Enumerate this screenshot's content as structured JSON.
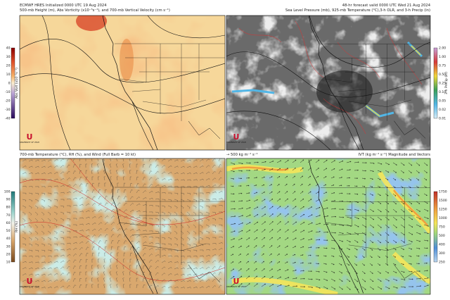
{
  "header": {
    "left_line1": "ECMWF HRES Initialized 0000 UTC 19 Aug 2024",
    "left_line2": "500-mb Height (m), Abs Vorticity (x10⁻⁵s⁻¹), and 700-mb Vertical Velocity (cm s⁻¹)",
    "right_line1": "48-hr forecast valid 0000 UTC Wed 21 Aug 2024",
    "right_line2": "Sea Level Pressure (mb), 925-mb Temperature (°C),3-h OLR, and 3-h Precip (in)"
  },
  "bottom_left_title": "700-mb Temperature (°C), RH (%), and Wind (Full Barb = 10 kt)",
  "vector_legend": "→ 500 kg m⁻¹ s⁻¹",
  "bottom_right_title": "IVT (kg m⁻¹ s⁻¹) Magnitude and Vectors",
  "logo": "UNIVERSITY OF UTAH",
  "colorbars": [
    {
      "label": "Abs Vort (x10⁻⁵s⁻¹)",
      "ticks": [
        "40",
        "30",
        "20",
        "10",
        "0",
        "-10",
        "-20",
        "-30",
        "-40"
      ]
    },
    {
      "label": "3-h Precip (in)",
      "ticks": [
        "2.00",
        "1.00",
        "0.75",
        "0.50",
        "0.25",
        "0.10",
        "0.05",
        "0.02",
        "0.01"
      ]
    },
    {
      "label": "RH (%)",
      "ticks": [
        "100",
        "90",
        "80",
        "70",
        "60",
        "50",
        "40",
        "30",
        "20",
        "10"
      ]
    },
    {
      "label": "",
      "ticks": [
        "1750",
        "1500",
        "1250",
        "1000",
        "750",
        "500",
        "400",
        "300",
        "250"
      ]
    }
  ]
}
